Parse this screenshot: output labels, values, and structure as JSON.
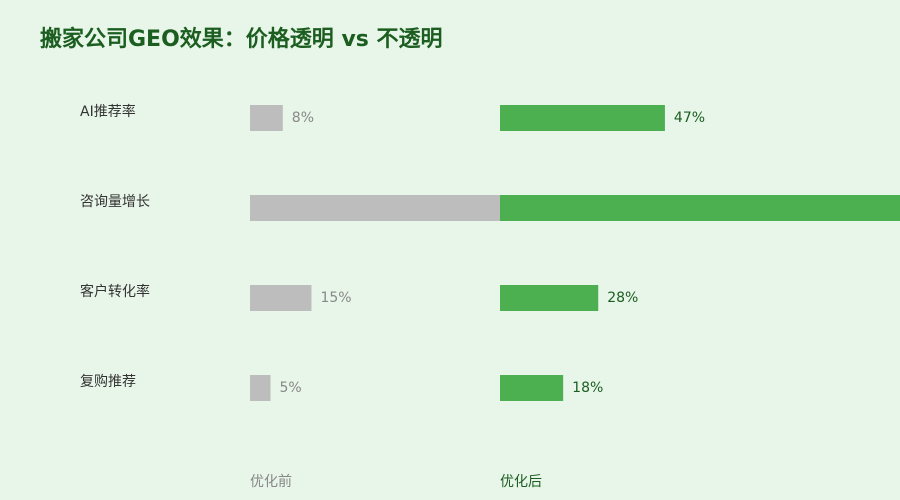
{
  "chart_data": {
    "type": "bar",
    "orientation": "horizontal",
    "title": "搬家公司GEO效果：价格透明 vs 不透明",
    "categories": [
      "AI推荐率",
      "咨询量增长",
      "客户转化率",
      "复购推荐"
    ],
    "series": [
      {
        "name": "优化前",
        "color": "#bdbdbd",
        "label_color": "#888888",
        "xlim": [
          0,
          61
        ],
        "values": [
          8,
          62,
          15,
          5
        ],
        "value_labels": [
          "8%",
          null,
          "15%",
          "5%"
        ]
      },
      {
        "name": "优化后",
        "color": "#4caf50",
        "label_color": "#1b5e20",
        "xlim": [
          0,
          114
        ],
        "values": [
          47,
          115,
          28,
          18
        ],
        "value_labels": [
          "47%",
          null,
          "28%",
          "18%"
        ]
      }
    ]
  }
}
